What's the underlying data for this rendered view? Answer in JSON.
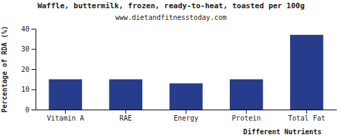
{
  "chart_data": {
    "type": "bar",
    "title": "Waffle, buttermilk, frozen, ready-to-heat, toasted per 100g",
    "subtitle": "www.dietandfitnesstoday.com",
    "x_label": "Different Nutrients",
    "y_label": "Percentage of RDA (%)",
    "categories": [
      "Vitamin A",
      "RAE",
      "Energy",
      "Protein",
      "Total Fat"
    ],
    "values": [
      15,
      15,
      13,
      15,
      37
    ],
    "color": "#273c8b",
    "ylim": [
      0,
      40
    ],
    "yticks": [
      0,
      10,
      20,
      30,
      40
    ],
    "grid": false
  }
}
